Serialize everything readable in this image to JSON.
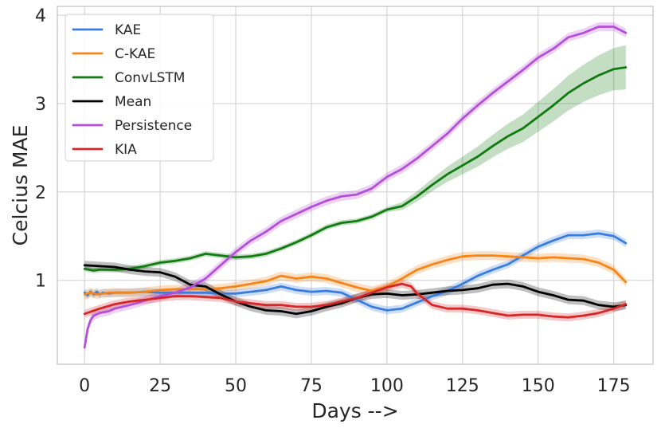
{
  "chart_data": {
    "type": "line",
    "title": "",
    "xlabel": "Days -->",
    "ylabel": "Celcius MAE",
    "xlim": [
      -9,
      188
    ],
    "ylim": [
      0.05,
      4.1
    ],
    "xticks": [
      0,
      25,
      50,
      75,
      100,
      125,
      150,
      175
    ],
    "yticks": [
      1,
      2,
      3,
      4
    ],
    "grid": true,
    "legend_position": "top-left",
    "series": [
      {
        "name": "KAE",
        "color": "#3b7ddd",
        "band": 0.045,
        "points": [
          [
            0,
            0.86
          ],
          [
            1,
            0.83
          ],
          [
            2,
            0.87
          ],
          [
            3,
            0.84
          ],
          [
            4,
            0.87
          ],
          [
            5,
            0.84
          ],
          [
            6,
            0.86
          ],
          [
            8,
            0.85
          ],
          [
            10,
            0.86
          ],
          [
            15,
            0.86
          ],
          [
            20,
            0.87
          ],
          [
            25,
            0.86
          ],
          [
            30,
            0.86
          ],
          [
            35,
            0.86
          ],
          [
            40,
            0.86
          ],
          [
            45,
            0.85
          ],
          [
            50,
            0.85
          ],
          [
            55,
            0.87
          ],
          [
            60,
            0.89
          ],
          [
            65,
            0.93
          ],
          [
            70,
            0.89
          ],
          [
            75,
            0.87
          ],
          [
            80,
            0.88
          ],
          [
            85,
            0.86
          ],
          [
            90,
            0.78
          ],
          [
            95,
            0.7
          ],
          [
            100,
            0.66
          ],
          [
            105,
            0.68
          ],
          [
            110,
            0.75
          ],
          [
            115,
            0.82
          ],
          [
            120,
            0.88
          ],
          [
            125,
            0.96
          ],
          [
            130,
            1.05
          ],
          [
            135,
            1.12
          ],
          [
            140,
            1.18
          ],
          [
            145,
            1.28
          ],
          [
            150,
            1.38
          ],
          [
            155,
            1.45
          ],
          [
            160,
            1.51
          ],
          [
            165,
            1.51
          ],
          [
            170,
            1.53
          ],
          [
            175,
            1.5
          ],
          [
            179,
            1.42
          ]
        ]
      },
      {
        "name": "C-KAE",
        "color": "#f58518",
        "band": 0.05,
        "points": [
          [
            0,
            0.84
          ],
          [
            2,
            0.86
          ],
          [
            4,
            0.84
          ],
          [
            8,
            0.86
          ],
          [
            10,
            0.86
          ],
          [
            15,
            0.86
          ],
          [
            20,
            0.87
          ],
          [
            25,
            0.89
          ],
          [
            30,
            0.9
          ],
          [
            35,
            0.9
          ],
          [
            40,
            0.9
          ],
          [
            45,
            0.91
          ],
          [
            50,
            0.93
          ],
          [
            55,
            0.96
          ],
          [
            60,
            0.99
          ],
          [
            65,
            1.05
          ],
          [
            70,
            1.02
          ],
          [
            75,
            1.04
          ],
          [
            80,
            1.02
          ],
          [
            85,
            0.97
          ],
          [
            90,
            0.92
          ],
          [
            95,
            0.88
          ],
          [
            100,
            0.93
          ],
          [
            105,
            1.02
          ],
          [
            110,
            1.12
          ],
          [
            115,
            1.18
          ],
          [
            120,
            1.23
          ],
          [
            125,
            1.27
          ],
          [
            130,
            1.28
          ],
          [
            135,
            1.28
          ],
          [
            140,
            1.27
          ],
          [
            145,
            1.26
          ],
          [
            150,
            1.25
          ],
          [
            155,
            1.26
          ],
          [
            160,
            1.25
          ],
          [
            165,
            1.24
          ],
          [
            170,
            1.2
          ],
          [
            175,
            1.12
          ],
          [
            179,
            0.98
          ]
        ]
      },
      {
        "name": "ConvLSTM",
        "color": "#117a11",
        "band": 0.03,
        "band_growth": 0.22,
        "points": [
          [
            0,
            1.13
          ],
          [
            3,
            1.11
          ],
          [
            5,
            1.12
          ],
          [
            10,
            1.12
          ],
          [
            15,
            1.13
          ],
          [
            20,
            1.16
          ],
          [
            25,
            1.2
          ],
          [
            30,
            1.22
          ],
          [
            35,
            1.25
          ],
          [
            40,
            1.3
          ],
          [
            45,
            1.28
          ],
          [
            50,
            1.26
          ],
          [
            55,
            1.27
          ],
          [
            60,
            1.3
          ],
          [
            65,
            1.36
          ],
          [
            70,
            1.43
          ],
          [
            75,
            1.51
          ],
          [
            80,
            1.6
          ],
          [
            85,
            1.65
          ],
          [
            90,
            1.67
          ],
          [
            95,
            1.72
          ],
          [
            100,
            1.8
          ],
          [
            105,
            1.84
          ],
          [
            110,
            1.95
          ],
          [
            115,
            2.08
          ],
          [
            120,
            2.2
          ],
          [
            125,
            2.3
          ],
          [
            130,
            2.4
          ],
          [
            135,
            2.52
          ],
          [
            140,
            2.63
          ],
          [
            145,
            2.72
          ],
          [
            150,
            2.85
          ],
          [
            155,
            2.98
          ],
          [
            160,
            3.12
          ],
          [
            165,
            3.23
          ],
          [
            170,
            3.32
          ],
          [
            175,
            3.39
          ],
          [
            179,
            3.41
          ]
        ]
      },
      {
        "name": "Mean",
        "color": "#000000",
        "band": 0.05,
        "points": [
          [
            0,
            1.17
          ],
          [
            5,
            1.16
          ],
          [
            10,
            1.15
          ],
          [
            15,
            1.12
          ],
          [
            20,
            1.1
          ],
          [
            25,
            1.09
          ],
          [
            30,
            1.04
          ],
          [
            35,
            0.95
          ],
          [
            40,
            0.93
          ],
          [
            45,
            0.84
          ],
          [
            50,
            0.76
          ],
          [
            55,
            0.7
          ],
          [
            60,
            0.66
          ],
          [
            65,
            0.65
          ],
          [
            70,
            0.62
          ],
          [
            75,
            0.65
          ],
          [
            80,
            0.7
          ],
          [
            85,
            0.74
          ],
          [
            90,
            0.8
          ],
          [
            95,
            0.84
          ],
          [
            100,
            0.85
          ],
          [
            105,
            0.83
          ],
          [
            110,
            0.84
          ],
          [
            115,
            0.86
          ],
          [
            120,
            0.88
          ],
          [
            125,
            0.89
          ],
          [
            130,
            0.91
          ],
          [
            135,
            0.95
          ],
          [
            140,
            0.96
          ],
          [
            145,
            0.93
          ],
          [
            150,
            0.87
          ],
          [
            155,
            0.83
          ],
          [
            160,
            0.78
          ],
          [
            165,
            0.77
          ],
          [
            170,
            0.72
          ],
          [
            175,
            0.7
          ],
          [
            179,
            0.72
          ]
        ]
      },
      {
        "name": "Persistence",
        "color": "#b44fd9",
        "band": 0.05,
        "points": [
          [
            0,
            0.24
          ],
          [
            1,
            0.45
          ],
          [
            2,
            0.55
          ],
          [
            3,
            0.6
          ],
          [
            5,
            0.63
          ],
          [
            8,
            0.65
          ],
          [
            10,
            0.68
          ],
          [
            15,
            0.72
          ],
          [
            20,
            0.77
          ],
          [
            25,
            0.82
          ],
          [
            30,
            0.86
          ],
          [
            35,
            0.92
          ],
          [
            40,
            1.02
          ],
          [
            45,
            1.17
          ],
          [
            50,
            1.32
          ],
          [
            55,
            1.45
          ],
          [
            60,
            1.55
          ],
          [
            65,
            1.67
          ],
          [
            70,
            1.75
          ],
          [
            75,
            1.83
          ],
          [
            80,
            1.9
          ],
          [
            85,
            1.95
          ],
          [
            90,
            1.97
          ],
          [
            95,
            2.04
          ],
          [
            100,
            2.17
          ],
          [
            105,
            2.26
          ],
          [
            110,
            2.38
          ],
          [
            115,
            2.52
          ],
          [
            120,
            2.66
          ],
          [
            125,
            2.83
          ],
          [
            130,
            2.98
          ],
          [
            135,
            3.12
          ],
          [
            140,
            3.25
          ],
          [
            145,
            3.38
          ],
          [
            150,
            3.52
          ],
          [
            155,
            3.62
          ],
          [
            160,
            3.75
          ],
          [
            165,
            3.8
          ],
          [
            170,
            3.87
          ],
          [
            175,
            3.87
          ],
          [
            179,
            3.8
          ]
        ]
      },
      {
        "name": "KIA",
        "color": "#d62728",
        "band": 0.045,
        "points": [
          [
            0,
            0.62
          ],
          [
            5,
            0.68
          ],
          [
            10,
            0.73
          ],
          [
            15,
            0.76
          ],
          [
            20,
            0.78
          ],
          [
            25,
            0.8
          ],
          [
            30,
            0.82
          ],
          [
            35,
            0.82
          ],
          [
            40,
            0.81
          ],
          [
            45,
            0.8
          ],
          [
            50,
            0.76
          ],
          [
            55,
            0.74
          ],
          [
            60,
            0.72
          ],
          [
            65,
            0.72
          ],
          [
            70,
            0.7
          ],
          [
            75,
            0.7
          ],
          [
            80,
            0.72
          ],
          [
            85,
            0.76
          ],
          [
            90,
            0.8
          ],
          [
            95,
            0.86
          ],
          [
            100,
            0.92
          ],
          [
            105,
            0.96
          ],
          [
            108,
            0.93
          ],
          [
            110,
            0.85
          ],
          [
            115,
            0.72
          ],
          [
            120,
            0.68
          ],
          [
            125,
            0.68
          ],
          [
            130,
            0.66
          ],
          [
            135,
            0.63
          ],
          [
            140,
            0.6
          ],
          [
            145,
            0.61
          ],
          [
            150,
            0.61
          ],
          [
            155,
            0.59
          ],
          [
            160,
            0.58
          ],
          [
            165,
            0.6
          ],
          [
            170,
            0.63
          ],
          [
            175,
            0.68
          ],
          [
            179,
            0.73
          ]
        ]
      }
    ]
  }
}
